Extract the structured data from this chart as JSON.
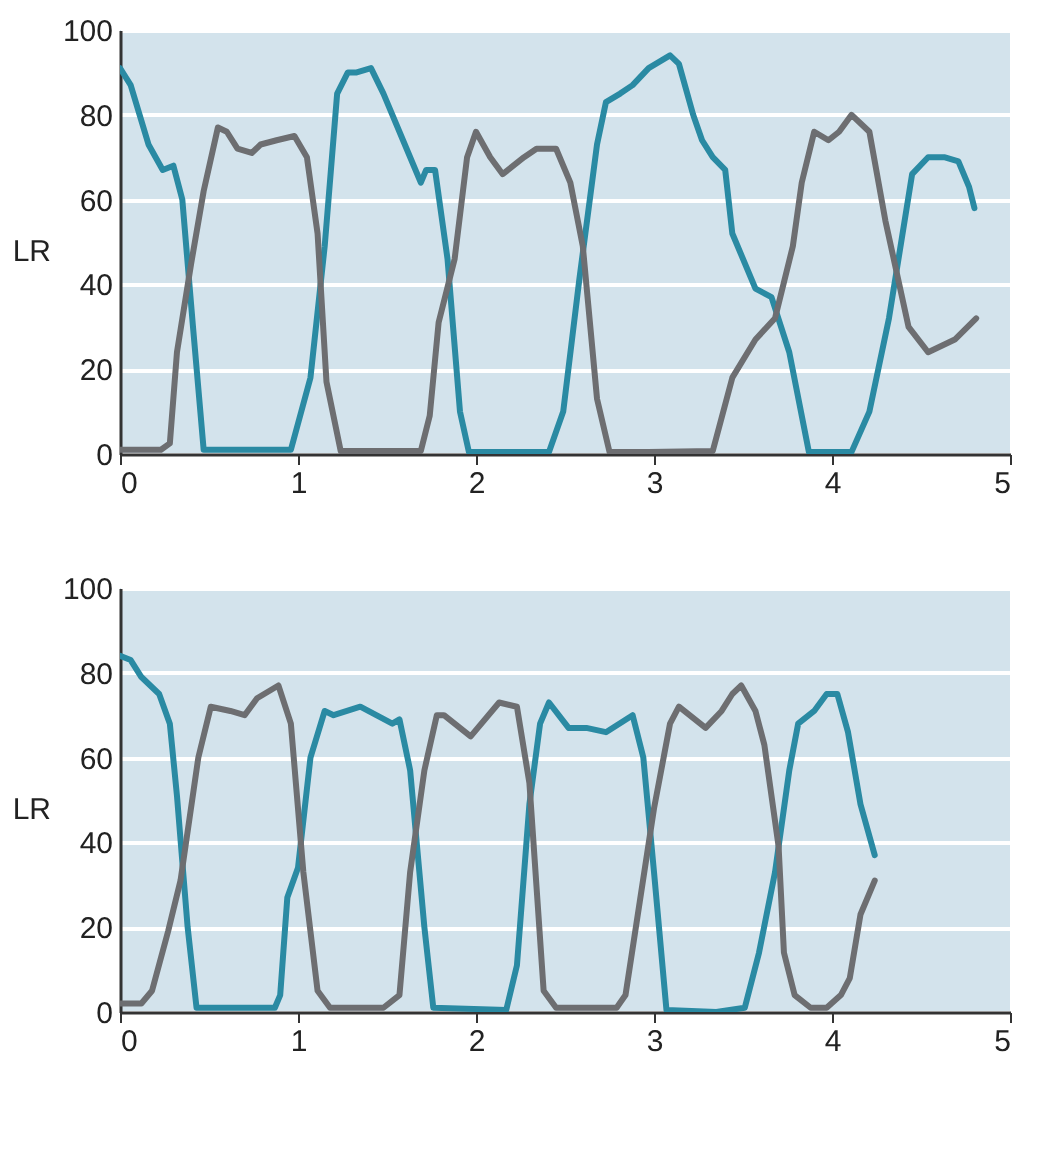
{
  "chart_data": [
    {
      "type": "line",
      "ylabel": "LR",
      "xlim": [
        0,
        5
      ],
      "xticks": [
        0,
        1,
        2,
        3,
        4,
        5
      ],
      "ylim": [
        0,
        100
      ],
      "yticks": [
        0,
        20,
        40,
        60,
        80,
        100
      ],
      "grid": "y",
      "series": [
        {
          "color": "#2a8aa3",
          "x": [
            0,
            0.06,
            0.16,
            0.24,
            0.3,
            0.35,
            0.41,
            0.47,
            0.96,
            1.07,
            1.15,
            1.22,
            1.28,
            1.33,
            1.41,
            1.48,
            1.59,
            1.69,
            1.72,
            1.77,
            1.84,
            1.91,
            1.96,
            2.41,
            2.49,
            2.58,
            2.68,
            2.73,
            2.81,
            2.88,
            2.97,
            3.09,
            3.14,
            3.22,
            3.27,
            3.33,
            3.4,
            3.44,
            3.57,
            3.66,
            3.76,
            3.87,
            4.11,
            4.21,
            4.32,
            4.45,
            4.54,
            4.63,
            4.71,
            4.77,
            4.8
          ],
          "values": [
            91,
            87,
            73,
            67,
            68,
            60,
            30,
            1,
            1,
            18,
            49,
            85,
            90,
            90,
            91,
            85,
            74,
            64,
            67,
            67,
            46,
            10,
            0.5,
            0.5,
            10,
            41,
            73,
            83,
            85,
            87,
            91,
            94,
            92,
            80,
            74,
            70,
            67,
            52,
            39,
            37,
            24,
            0.5,
            0.5,
            10,
            32,
            66,
            70,
            70,
            69,
            63,
            58
          ]
        },
        {
          "color": "#6d6e71",
          "x": [
            0,
            0.23,
            0.28,
            0.32,
            0.4,
            0.47,
            0.55,
            0.6,
            0.66,
            0.74,
            0.79,
            0.88,
            0.98,
            1.05,
            1.11,
            1.16,
            1.24,
            1.44,
            1.69,
            1.74,
            1.79,
            1.88,
            1.95,
            2.0,
            2.08,
            2.15,
            2.27,
            2.34,
            2.45,
            2.53,
            2.6,
            2.68,
            2.75,
            2.97,
            3.33,
            3.44,
            3.57,
            3.68,
            3.78,
            3.83,
            3.9,
            3.98,
            4.04,
            4.11,
            4.21,
            4.3,
            4.43,
            4.54,
            4.69,
            4.81
          ],
          "values": [
            1,
            1,
            2.5,
            24,
            45,
            62,
            77,
            76,
            72,
            71,
            73,
            74,
            75,
            70,
            52,
            17,
            0.7,
            0.7,
            0.7,
            9,
            31,
            46,
            70,
            76,
            70,
            66,
            70,
            72,
            72,
            64,
            49,
            13,
            0.5,
            0.5,
            0.7,
            18,
            27,
            32,
            49,
            64,
            76,
            74,
            76,
            80,
            76,
            55,
            30,
            24,
            27,
            32
          ]
        }
      ]
    },
    {
      "type": "line",
      "ylabel": "LR",
      "xlim": [
        0,
        5
      ],
      "xticks": [
        0,
        1,
        2,
        3,
        4,
        5
      ],
      "ylim": [
        0,
        100
      ],
      "yticks": [
        0,
        20,
        40,
        60,
        80,
        100
      ],
      "grid": "y",
      "series": [
        {
          "color": "#2a8aa3",
          "x": [
            0,
            0.06,
            0.12,
            0.22,
            0.28,
            0.32,
            0.38,
            0.43,
            0.87,
            0.9,
            0.94,
            1.0,
            1.07,
            1.15,
            1.2,
            1.35,
            1.44,
            1.53,
            1.57,
            1.63,
            1.71,
            1.76,
            2.17,
            2.23,
            2.3,
            2.36,
            2.41,
            2.52,
            2.62,
            2.73,
            2.88,
            2.94,
            3.0,
            3.07,
            3.35,
            3.51,
            3.59,
            3.68,
            3.76,
            3.81,
            3.9,
            3.97,
            4.03,
            4.09,
            4.16,
            4.24
          ],
          "values": [
            84,
            83,
            79,
            75,
            68,
            51,
            20,
            1,
            1,
            4,
            27,
            34,
            60,
            71,
            70,
            72,
            70,
            68,
            69,
            57,
            20,
            1,
            0.5,
            11,
            49,
            68,
            73,
            67,
            67,
            66,
            70,
            60,
            33,
            0.5,
            0,
            1,
            14,
            33,
            57,
            68,
            71,
            75,
            75,
            66,
            49,
            37
          ]
        },
        {
          "color": "#6d6e71",
          "x": [
            0,
            0.12,
            0.18,
            0.27,
            0.34,
            0.44,
            0.51,
            0.62,
            0.7,
            0.77,
            0.85,
            0.89,
            0.96,
            1.03,
            1.11,
            1.18,
            1.48,
            1.57,
            1.63,
            1.71,
            1.78,
            1.82,
            1.97,
            2.13,
            2.23,
            2.3,
            2.38,
            2.45,
            2.79,
            2.84,
            2.92,
            3.0,
            3.09,
            3.14,
            3.29,
            3.38,
            3.44,
            3.49,
            3.57,
            3.62,
            3.7,
            3.73,
            3.79,
            3.88,
            3.97,
            4.05,
            4.1,
            4.16,
            4.24
          ],
          "values": [
            2,
            2,
            5,
            19,
            31,
            60,
            72,
            71,
            70,
            74,
            76,
            77,
            68,
            33,
            5,
            1,
            1,
            4,
            33,
            57,
            70,
            70,
            65,
            73,
            72,
            54,
            5,
            1,
            1,
            4,
            26,
            48,
            68,
            72,
            67,
            71,
            75,
            77,
            71,
            63,
            39,
            14,
            4,
            1,
            1,
            4,
            8,
            23,
            31
          ]
        }
      ]
    }
  ]
}
